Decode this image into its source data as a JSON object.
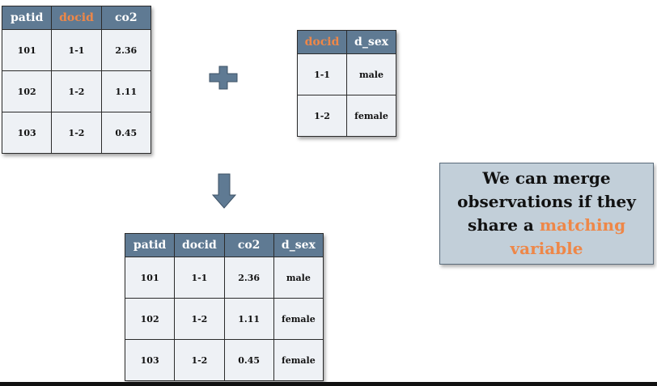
{
  "table_left": {
    "headers": [
      "patid",
      "docid",
      "co2"
    ],
    "rows": [
      [
        "101",
        "1-1",
        "2.36"
      ],
      [
        "102",
        "1-2",
        "1.11"
      ],
      [
        "103",
        "1-2",
        "0.45"
      ]
    ]
  },
  "table_right": {
    "headers": [
      "docid",
      "d_sex"
    ],
    "rows": [
      [
        "1-1",
        "male"
      ],
      [
        "1-2",
        "female"
      ]
    ]
  },
  "table_result": {
    "headers": [
      "patid",
      "docid",
      "co2",
      "d_sex"
    ],
    "rows": [
      [
        "101",
        "1-1",
        "2.36",
        "male"
      ],
      [
        "102",
        "1-2",
        "1.11",
        "female"
      ],
      [
        "103",
        "1-2",
        "0.45",
        "female"
      ]
    ]
  },
  "note": {
    "line1": "We can merge observations if they share a",
    "accent": "matching variable"
  },
  "colors": {
    "header_bg": "#5f7a93",
    "highlight": "#ee8748",
    "cell_bg": "#eef1f5",
    "note_bg": "#c2cfd9"
  },
  "icons": {
    "plus": "plus-icon",
    "arrow": "down-arrow-icon"
  }
}
